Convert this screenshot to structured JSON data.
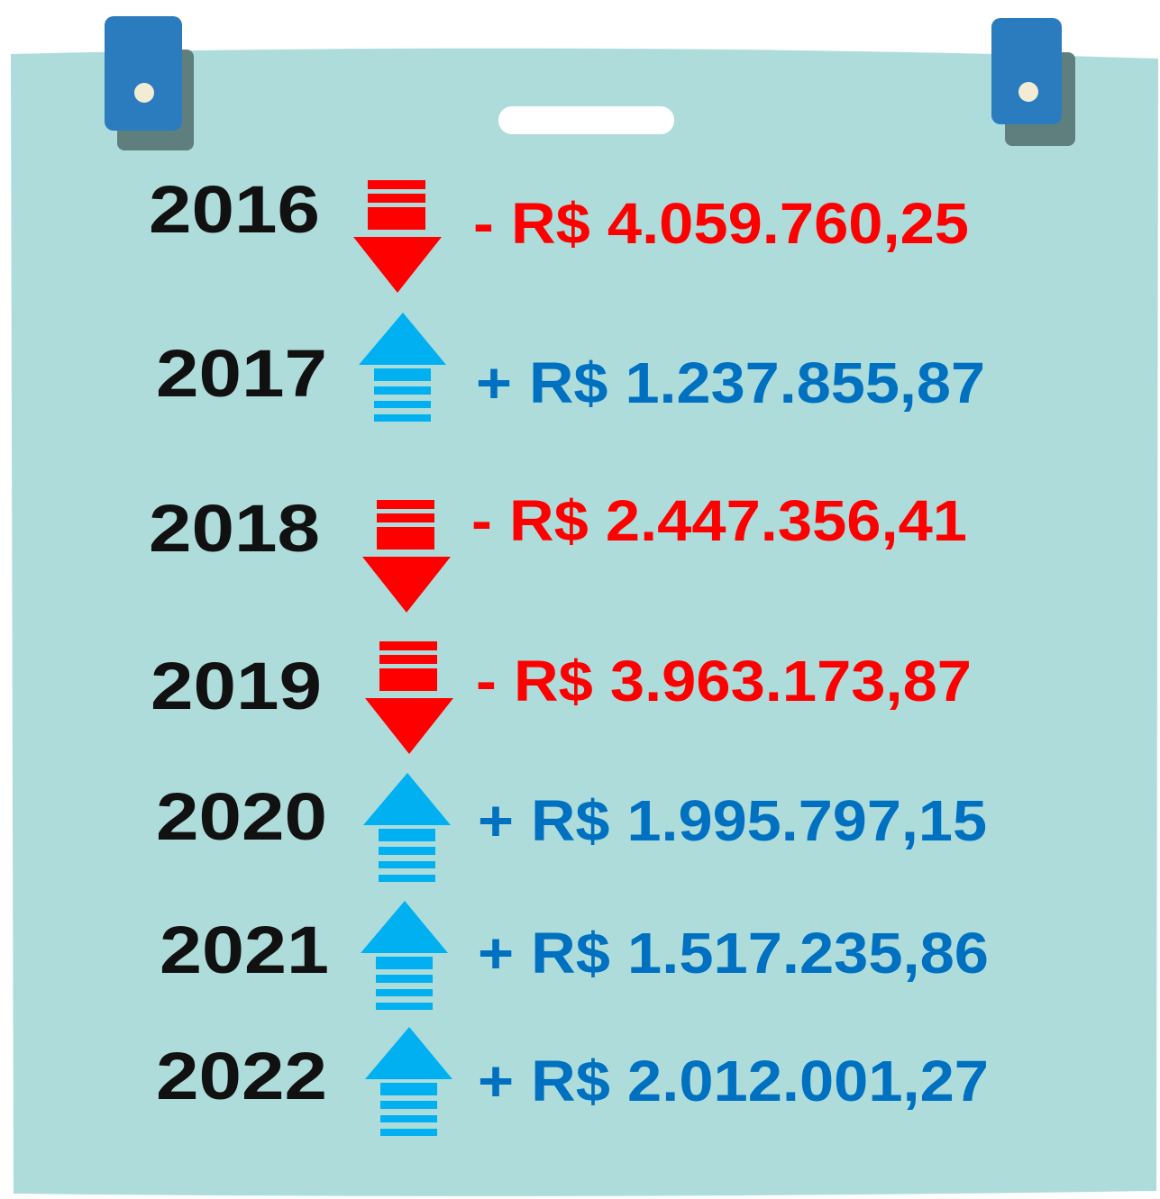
{
  "rows": [
    {
      "year": "2016",
      "amount": "- R$ 4.059.760,25"
    },
    {
      "year": "2017",
      "amount": "+ R$ 1.237.855,87"
    },
    {
      "year": "2018",
      "amount": "- R$ 2.447.356,41"
    },
    {
      "year": "2019",
      "amount": "- R$ 3.963.173,87"
    },
    {
      "year": "2020",
      "amount": "+ R$ 1.995.797,15"
    },
    {
      "year": "2021",
      "amount": "+ R$ 1.517.235,86"
    },
    {
      "year": "2022",
      "amount": "+ R$ 2.012.001,27"
    }
  ]
}
